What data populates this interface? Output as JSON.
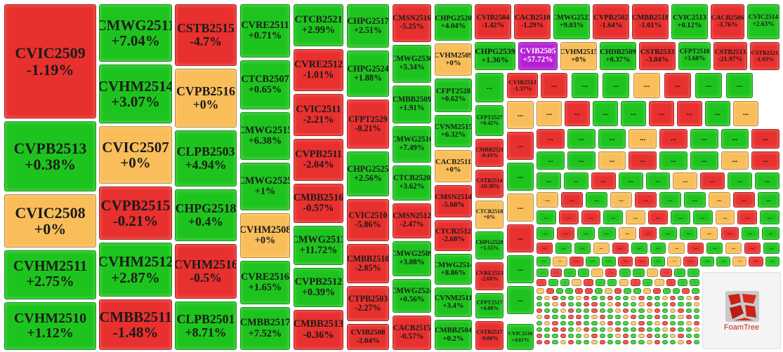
{
  "tiles": [
    {
      "name": "CVIC2509",
      "change": "-1.19%",
      "color": "#e8302e"
    },
    {
      "name": "CVPB2513",
      "change": "+0.38%",
      "color": "#1ec41e"
    },
    {
      "name": "CVIC2508",
      "change": "+0%",
      "color": "#f9be5a"
    },
    {
      "name": "CVHM2511",
      "change": "+2.75%",
      "color": "#1ec41e"
    },
    {
      "name": "CVHM2510",
      "change": "+1.12%",
      "color": "#1ec41e"
    },
    {
      "name": "CMWG2511",
      "change": "+7.04%",
      "color": "#1ec41e"
    },
    {
      "name": "CVHM2514",
      "change": "+3.07%",
      "color": "#1ec41e"
    },
    {
      "name": "CVIC2507",
      "change": "+0%",
      "color": "#f9be5a"
    },
    {
      "name": "CVPB2515",
      "change": "-0.21%",
      "color": "#e8302e"
    },
    {
      "name": "CVHM2512",
      "change": "+2.87%",
      "color": "#1ec41e"
    },
    {
      "name": "CMBB2511",
      "change": "-1.48%",
      "color": "#e8302e"
    },
    {
      "name": "CSTB2515",
      "change": "-4.7%",
      "color": "#e8302e"
    },
    {
      "name": "CVPB2516",
      "change": "+0%",
      "color": "#f9be5a"
    },
    {
      "name": "CLPB2503",
      "change": "+4.94%",
      "color": "#1ec41e"
    },
    {
      "name": "CHPG2518",
      "change": "+0.4%",
      "color": "#1ec41e"
    },
    {
      "name": "CVHM2516",
      "change": "-0.5%",
      "color": "#e8302e"
    },
    {
      "name": "CLPB2501",
      "change": "+8.71%",
      "color": "#1ec41e"
    },
    {
      "name": "CVRE2511",
      "change": "+0.71%",
      "color": "#1ec41e"
    },
    {
      "name": "CTCB2507",
      "change": "+0.65%",
      "color": "#1ec41e"
    },
    {
      "name": "CMWG2515",
      "change": "+6.38%",
      "color": "#1ec41e"
    },
    {
      "name": "CMWG2525",
      "change": "+1%",
      "color": "#1ec41e"
    },
    {
      "name": "CVHM2508",
      "change": "+0%",
      "color": "#f9be5a"
    },
    {
      "name": "CVRE2516",
      "change": "+1.65%",
      "color": "#1ec41e"
    },
    {
      "name": "CMBB2517",
      "change": "+7.52%",
      "color": "#1ec41e"
    },
    {
      "name": "CTCB2521",
      "change": "+2.99%",
      "color": "#1ec41e"
    },
    {
      "name": "CVRE2512",
      "change": "-1.01%",
      "color": "#e8302e"
    },
    {
      "name": "CVIC2511",
      "change": "-2.21%",
      "color": "#e8302e"
    },
    {
      "name": "CVPB2511",
      "change": "-2.04%",
      "color": "#e8302e"
    },
    {
      "name": "CMBB2516",
      "change": "-0.57%",
      "color": "#e8302e"
    },
    {
      "name": "CMWG2513",
      "change": "+11.72%",
      "color": "#1ec41e"
    },
    {
      "name": "CVPB2512",
      "change": "+0.39%",
      "color": "#1ec41e"
    },
    {
      "name": "CMBB2513",
      "change": "-0.36%",
      "color": "#e8302e"
    },
    {
      "name": "CHPG2517",
      "change": "+2.51%",
      "color": "#1ec41e"
    },
    {
      "name": "CHPG2524",
      "change": "+1.88%",
      "color": "#1ec41e"
    },
    {
      "name": "CFPT2529",
      "change": "-0.21%",
      "color": "#e8302e"
    },
    {
      "name": "CHPG2525",
      "change": "+2.56%",
      "color": "#1ec41e"
    },
    {
      "name": "CVIC2510",
      "change": "-5.86%",
      "color": "#e8302e"
    },
    {
      "name": "CMBB2510",
      "change": "-2.85%",
      "color": "#e8302e"
    },
    {
      "name": "CTPB2503",
      "change": "-2.27%",
      "color": "#e8302e"
    },
    {
      "name": "CVIB2508",
      "change": "-2.04%",
      "color": "#e8302e"
    },
    {
      "name": "CMSN2516",
      "change": "-5.25%",
      "color": "#e8302e"
    },
    {
      "name": "CMWG2530",
      "change": "+5.34%",
      "color": "#1ec41e"
    },
    {
      "name": "CMBB2509",
      "change": "+1.91%",
      "color": "#1ec41e"
    },
    {
      "name": "CMWG2510",
      "change": "+7.49%",
      "color": "#1ec41e"
    },
    {
      "name": "CTCB2520",
      "change": "+3.62%",
      "color": "#1ec41e"
    },
    {
      "name": "CMSN2512",
      "change": "-2.47%",
      "color": "#e8302e"
    },
    {
      "name": "CMWG2509",
      "change": "+3.08%",
      "color": "#1ec41e"
    },
    {
      "name": "CMWG2524",
      "change": "+0.56%",
      "color": "#1ec41e"
    },
    {
      "name": "CACB2515",
      "change": "-0.57%",
      "color": "#e8302e"
    },
    {
      "name": "CHPG2520",
      "change": "+4.04%",
      "color": "#1ec41e"
    },
    {
      "name": "CVHM2509",
      "change": "+0%",
      "color": "#f9be5a"
    },
    {
      "name": "CFPT2528",
      "change": "+0.62%",
      "color": "#1ec41e"
    },
    {
      "name": "CVNM2515",
      "change": "+6.32%",
      "color": "#1ec41e"
    },
    {
      "name": "CACB2511",
      "change": "+0%",
      "color": "#f9be5a"
    },
    {
      "name": "CMSN2514",
      "change": "-5.68%",
      "color": "#e8302e"
    },
    {
      "name": "CTCB2512",
      "change": "-2.68%",
      "color": "#e8302e"
    },
    {
      "name": "CMWG2514",
      "change": "+8.86%",
      "color": "#1ec41e"
    },
    {
      "name": "CVNM2511",
      "change": "+3.4%",
      "color": "#1ec41e"
    },
    {
      "name": "CMBB2504",
      "change": "+0.2%",
      "color": "#1ec41e"
    },
    {
      "name": "CVIB2504",
      "change": "-1.42%",
      "color": "#e8302e"
    },
    {
      "name": "CACB2510",
      "change": "-1.29%",
      "color": "#e8302e"
    },
    {
      "name": "CMWG2523",
      "change": "+9.03%",
      "color": "#1ec41e"
    },
    {
      "name": "CVPB2502",
      "change": "-1.64%",
      "color": "#e8302e"
    },
    {
      "name": "CMBB2518",
      "change": "-1.01%",
      "color": "#e8302e"
    },
    {
      "name": "CVIC2513",
      "change": "+0.12%",
      "color": "#1ec41e"
    },
    {
      "name": "CACB2506",
      "change": "-3.76%",
      "color": "#e8302e"
    },
    {
      "name": "CVIC2514",
      "change": "+2.63%",
      "color": "#1ec41e"
    },
    {
      "name": "CHPG2539",
      "change": "+1.36%",
      "color": "#1ec41e"
    },
    {
      "name": "CVIB2505",
      "change": "+57.72%",
      "color": "#b51fd4"
    },
    {
      "name": "CVHM2515",
      "change": "+0%",
      "color": "#f9be5a"
    },
    {
      "name": "CHDB2509",
      "change": "+0.37%",
      "color": "#1ec41e"
    },
    {
      "name": "CSTB2533",
      "change": "-3.04%",
      "color": "#e8302e"
    },
    {
      "name": "CFPT2518",
      "change": "+3.68%",
      "color": "#1ec41e"
    },
    {
      "name": "CSTB2513",
      "change": "-21.97%",
      "color": "#e8302e"
    },
    {
      "name": "CSTB2521",
      "change": "-1.93%",
      "color": "#e8302e"
    },
    {
      "name": "CVIB2513",
      "change": "-1.37%",
      "color": "#e8302e"
    },
    {
      "name": "CFPT2527",
      "change": "+0.42%",
      "color": "#1ec41e"
    },
    {
      "name": "CMBB2521",
      "change": "-0.43%",
      "color": "#e8302e"
    },
    {
      "name": "CSTB2514",
      "change": "-10.38%",
      "color": "#e8302e"
    },
    {
      "name": "CTCB2518",
      "change": "+0%",
      "color": "#f9be5a"
    },
    {
      "name": "CHPG2528",
      "change": "+1.55%",
      "color": "#1ec41e"
    },
    {
      "name": "CVRE2513",
      "change": "-2.68%",
      "color": "#e8302e"
    },
    {
      "name": "CFPT2517",
      "change": "+4.08%",
      "color": "#1ec41e"
    },
    {
      "name": "CSTB2517",
      "change": "-9.88%",
      "color": "#e8302e"
    },
    {
      "name": "CVIC2516",
      "change": "+4.61%",
      "color": "#1ec41e"
    }
  ],
  "filler_label": "...",
  "filler_colors": [
    "#1ec41e",
    "#e8302e",
    "#f9be5a"
  ],
  "logo": "FoamTree"
}
